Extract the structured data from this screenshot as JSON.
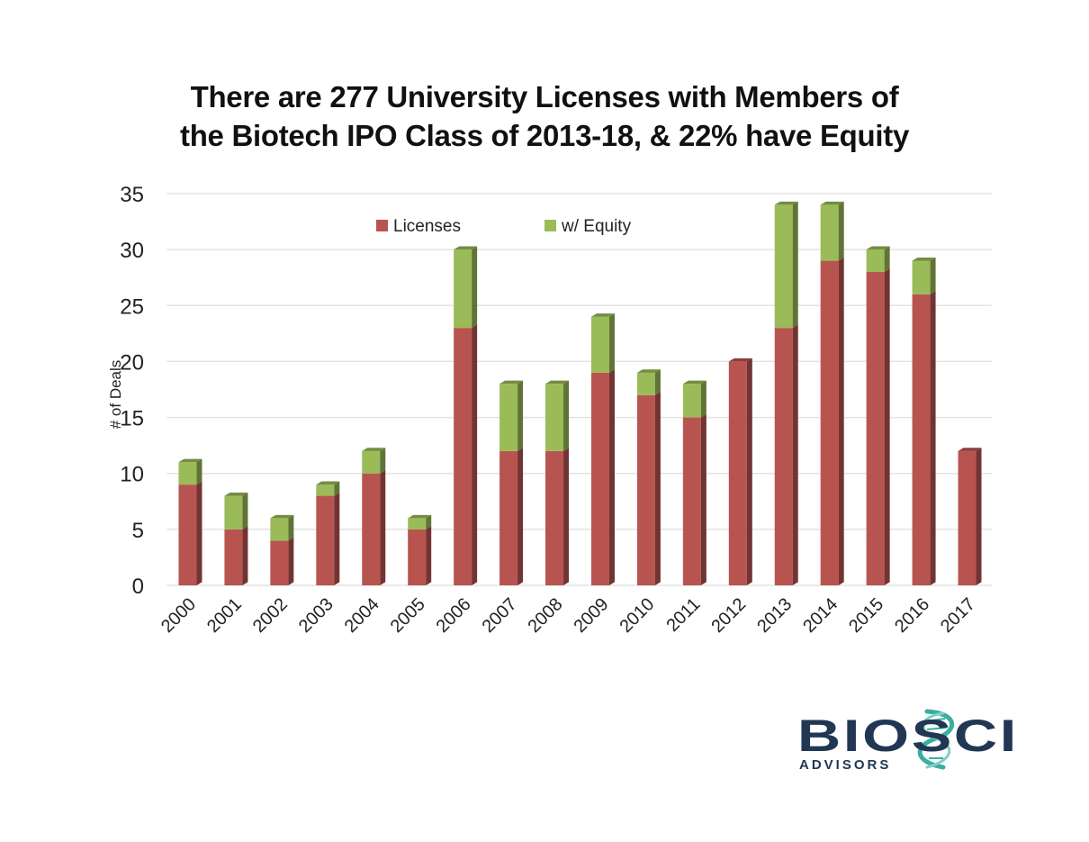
{
  "chart_data": {
    "type": "bar",
    "stacked": true,
    "title": [
      "There are 277 University Licenses with Members of",
      "the Biotech IPO Class of 2013-18, & 22% have Equity"
    ],
    "ylabel": "# of Deals",
    "xlabel": "",
    "ylim": [
      0,
      35
    ],
    "yticks": [
      0,
      5,
      10,
      15,
      20,
      25,
      30,
      35
    ],
    "grid": true,
    "legend_position": "top-center",
    "categories": [
      "2000",
      "2001",
      "2002",
      "2003",
      "2004",
      "2005",
      "2006",
      "2007",
      "2008",
      "2009",
      "2010",
      "2011",
      "2012",
      "2013",
      "2014",
      "2015",
      "2016",
      "2017"
    ],
    "series": [
      {
        "name": "Licenses",
        "color": "#B85450",
        "values": [
          9,
          5,
          4,
          8,
          10,
          5,
          23,
          12,
          12,
          19,
          17,
          15,
          20,
          23,
          29,
          28,
          26,
          12
        ]
      },
      {
        "name": "w/ Equity",
        "color": "#9BBB59",
        "values": [
          2,
          3,
          2,
          1,
          2,
          1,
          7,
          6,
          6,
          5,
          2,
          3,
          0,
          11,
          5,
          2,
          3,
          0
        ]
      }
    ]
  },
  "logo": {
    "brand_top": "BIOSCI",
    "brand_bottom": "ADVISORS",
    "colors": {
      "navy": "#213754",
      "teal": "#3AAE9F"
    }
  }
}
